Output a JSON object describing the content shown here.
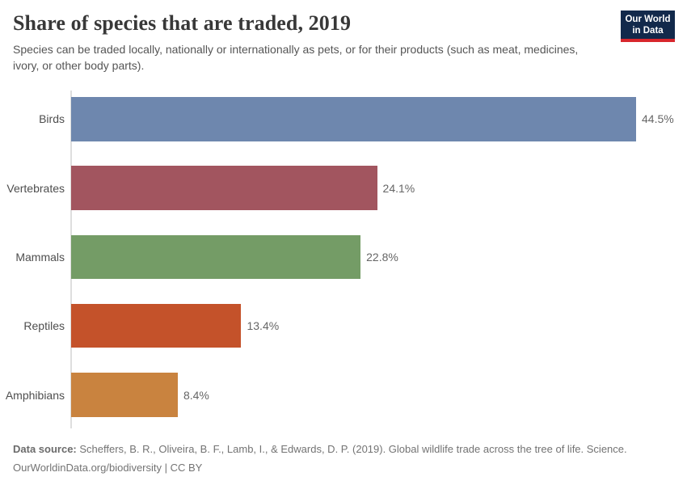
{
  "header": {
    "title": "Share of species that are traded, 2019",
    "subtitle": "Species can be traded locally, nationally or internationally as pets, or for their products (such as meat, medicines, ivory, or other body parts).",
    "logo": {
      "line1": "Our World",
      "line2": "in Data",
      "bg_color": "#12294b",
      "accent_color": "#d8262c"
    }
  },
  "chart_data": {
    "type": "bar",
    "orientation": "horizontal",
    "title": "Share of species that are traded, 2019",
    "categories": [
      "Birds",
      "Vertebrates",
      "Mammals",
      "Reptiles",
      "Amphibians"
    ],
    "values": [
      44.5,
      24.1,
      22.8,
      13.4,
      8.4
    ],
    "value_labels": [
      "44.5%",
      "24.1%",
      "22.8%",
      "13.4%",
      "8.4%"
    ],
    "colors": [
      "#6e87ae",
      "#a2555f",
      "#749c66",
      "#c4522a",
      "#c9833f"
    ],
    "xlim": [
      0,
      44.5
    ],
    "grid": false,
    "legend": false
  },
  "footer": {
    "source_label": "Data source:",
    "source_text": " Scheffers, B. R., Oliveira, B. F., Lamb, I., & Edwards, D. P. (2019). Global wildlife trade across the tree of life. Science.",
    "link_line": "OurWorldinData.org/biodiversity | CC BY"
  }
}
